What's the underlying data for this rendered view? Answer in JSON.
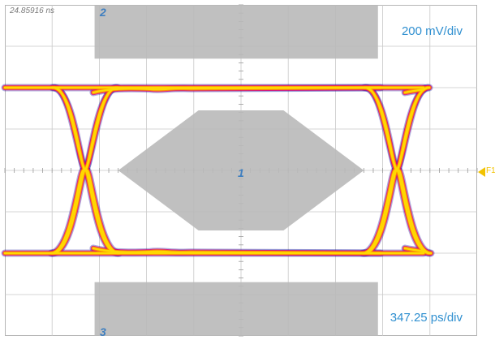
{
  "timestamp": "24.85916 ns",
  "vertical_scale": "200 mV/div",
  "horizontal_scale": "347.25 ps/div",
  "trigger_label": "F1",
  "colors": {
    "background": "#ffffff",
    "grid": "#c8c8c8",
    "mask": "#b9b9b9",
    "scale_text": "#2f8fd0",
    "mask_label": "#3f7fc0",
    "trigger": "#f2c200",
    "trace_core": "#ffd800",
    "trace_mid": "#ff9000",
    "trace_hot": "#e8006a",
    "trace_outer": "#1a1aa0"
  },
  "chart_data": {
    "type": "eye-diagram",
    "title": "",
    "xlabel": "",
    "ylabel": "",
    "grid": true,
    "divisions": {
      "horizontal": 10,
      "vertical": 8
    },
    "volts_per_div_mV": 200,
    "time_per_div_ps": 347.25,
    "levels_mV": {
      "high": 400,
      "low": -400
    },
    "crossings_div": [
      -3.3,
      3.3
    ],
    "masks": [
      {
        "id": "2",
        "x_div": [
          -3.1,
          2.9
        ],
        "y_div": [
          2.7,
          4.0
        ]
      },
      {
        "id": "1",
        "polygon_div": [
          [
            -2.6,
            0
          ],
          [
            -0.9,
            1.45
          ],
          [
            0.9,
            1.45
          ],
          [
            2.6,
            0
          ],
          [
            0.9,
            -1.45
          ],
          [
            -0.9,
            -1.45
          ]
        ]
      },
      {
        "id": "3",
        "x_div": [
          -3.1,
          2.9
        ],
        "y_div": [
          -4.0,
          -2.7
        ]
      }
    ]
  }
}
